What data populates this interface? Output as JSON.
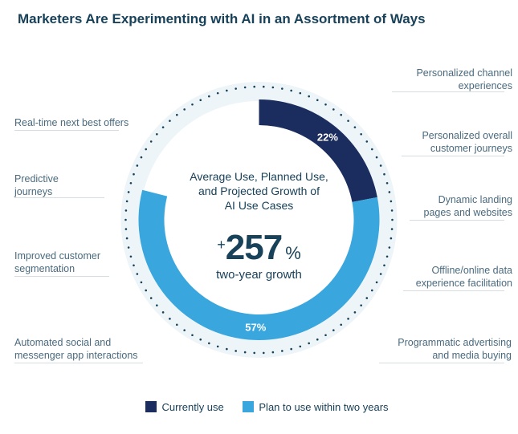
{
  "title": "Marketers Are Experimenting with AI in an Assortment of Ways",
  "donut": {
    "type": "donut",
    "segments": [
      {
        "key": "currently",
        "label": "22%",
        "value": 22,
        "color": "#1b2d5e"
      },
      {
        "key": "planned",
        "label": "57%",
        "value": 57,
        "color": "#39a7dd"
      }
    ],
    "gap_value": 21,
    "start_angle_deg": 0,
    "outer_radius": 150,
    "inner_radius": 118,
    "halo_radius": 160,
    "halo_color": "#eef5f9",
    "dotted_radius": 166,
    "dotted_dot_color": "#18415a",
    "background": "#ffffff"
  },
  "center": {
    "line1": "Average Use, Planned Use,",
    "line2": "and Projected Growth of",
    "line3": "AI Use Cases",
    "plus": "+",
    "big": "257",
    "pct_sign": "%",
    "sub": "two-year growth"
  },
  "labels": {
    "left": [
      "Real-time next best offers",
      "Predictive\njourneys",
      "Improved customer\nsegmentation",
      "Automated social and\nmessenger app interactions"
    ],
    "right": [
      "Personalized channel\nexperiences",
      "Personalized overall\ncustomer journeys",
      "Dynamic landing\npages and websites",
      "Offline/online data\nexperience facilitation",
      "Programmatic advertising\nand media buying"
    ]
  },
  "legend": {
    "currently": {
      "swatch": "#1b2d5e",
      "text": "Currently use"
    },
    "planned": {
      "swatch": "#39a7dd",
      "text": "Plan to use within two years"
    }
  }
}
